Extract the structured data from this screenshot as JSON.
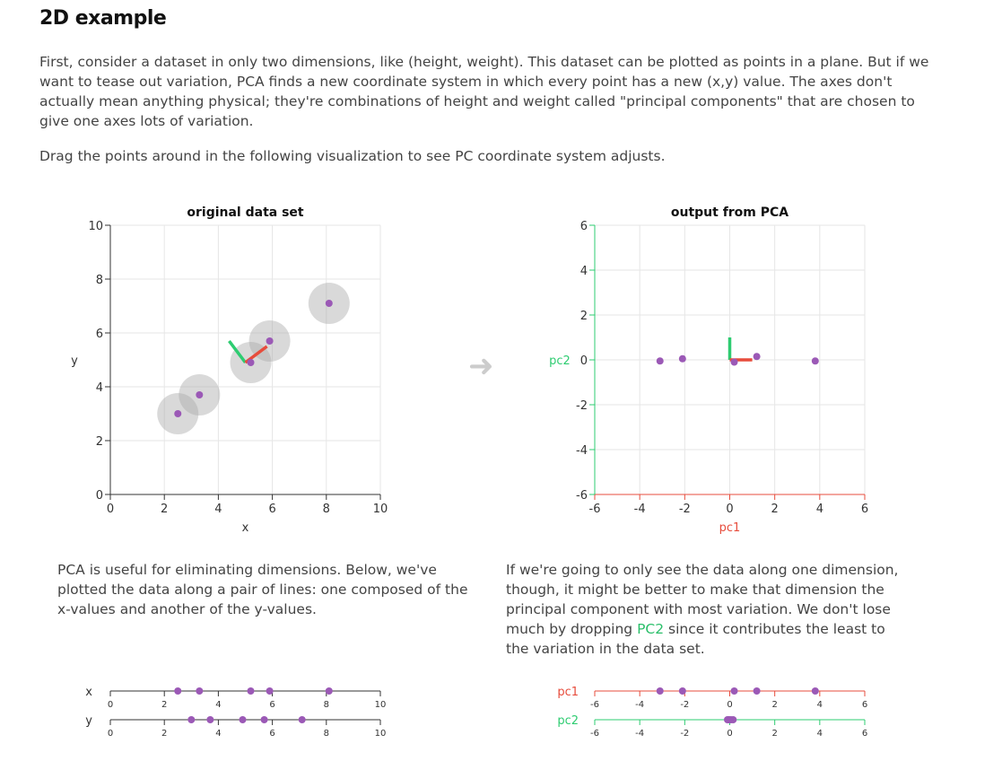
{
  "page": {
    "title": "2D example",
    "intro": "First, consider a dataset in only two dimensions, like (height, weight). This dataset can be plotted as points in a plane. But if we want to tease out variation, PCA finds a new coordinate system in which every point has a new (x,y) value. The axes don't actually mean anything physical; they're combinations of height and weight called \"principal components\" that are chosen to give one axes lots of variation.",
    "instruction": "Drag the points around in the following visualization to see PC coordinate system adjusts.",
    "left_text": "PCA is useful for eliminating dimensions. Below, we've plotted the data along a pair of lines: one composed of the x-values and another of the y-values.",
    "right_text_a": "If we're going to only see the data along one dimension, though, it might be better to make that dimension the principal component with most variation. We don't lose much by dropping ",
    "right_text_pc2": "PC2",
    "right_text_b": " since it contributes the least to the variation in the data set."
  },
  "colors": {
    "point": "#9b59b6",
    "pc1": "#e74c3c",
    "pc2": "#2ecc71",
    "halo": "#aaaaaa",
    "grid": "#e6e6e6",
    "arrow": "#cccccc"
  },
  "chart_data": [
    {
      "type": "scatter",
      "title": "original data set",
      "xlabel": "x",
      "ylabel": "y",
      "xlim": [
        0,
        10
      ],
      "ylim": [
        0,
        10
      ],
      "xticks": [
        0,
        2,
        4,
        6,
        8,
        10
      ],
      "yticks": [
        0,
        2,
        4,
        6,
        8,
        10
      ],
      "grid": true,
      "points": [
        {
          "x": 2.5,
          "y": 3.0
        },
        {
          "x": 3.3,
          "y": 3.7
        },
        {
          "x": 5.2,
          "y": 4.9
        },
        {
          "x": 5.9,
          "y": 5.7
        },
        {
          "x": 8.1,
          "y": 7.1
        }
      ],
      "pc_axes": {
        "origin": {
          "x": 5.0,
          "y": 4.9
        },
        "pc1_end": {
          "x": 5.8,
          "y": 5.5
        },
        "pc2_end": {
          "x": 4.4,
          "y": 5.7
        }
      }
    },
    {
      "type": "scatter",
      "title": "output from PCA",
      "xlabel": "pc1",
      "ylabel": "pc2",
      "xlim": [
        -6,
        6
      ],
      "ylim": [
        -6,
        6
      ],
      "xticks": [
        -6,
        -4,
        -2,
        0,
        2,
        4,
        6
      ],
      "yticks": [
        -6,
        -4,
        -2,
        0,
        2,
        4,
        6
      ],
      "grid": true,
      "points": [
        {
          "x": -3.1,
          "y": -0.05
        },
        {
          "x": -2.1,
          "y": 0.05
        },
        {
          "x": 0.2,
          "y": -0.1
        },
        {
          "x": 1.2,
          "y": 0.15
        },
        {
          "x": 3.8,
          "y": -0.05
        }
      ],
      "pc_axes": {
        "origin": {
          "x": 0,
          "y": 0
        },
        "pc1_end": {
          "x": 1.0,
          "y": 0
        },
        "pc2_end": {
          "x": 0,
          "y": 1.0
        }
      }
    },
    {
      "type": "scatter",
      "title": "",
      "rows": [
        {
          "label": "x",
          "values": [
            2.5,
            3.3,
            5.2,
            5.9,
            8.1
          ]
        },
        {
          "label": "y",
          "values": [
            3.0,
            3.7,
            4.9,
            5.7,
            7.1
          ]
        }
      ],
      "xlim": [
        0,
        10
      ],
      "xticks": [
        0,
        2,
        4,
        6,
        8,
        10
      ]
    },
    {
      "type": "scatter",
      "title": "",
      "rows": [
        {
          "label": "pc1",
          "values": [
            -3.1,
            -2.1,
            0.2,
            1.2,
            3.8
          ]
        },
        {
          "label": "pc2",
          "values": [
            -0.05,
            0.05,
            -0.1,
            0.15,
            -0.05
          ]
        }
      ],
      "xlim": [
        -6,
        6
      ],
      "xticks": [
        -6,
        -4,
        -2,
        0,
        2,
        4,
        6
      ]
    }
  ]
}
